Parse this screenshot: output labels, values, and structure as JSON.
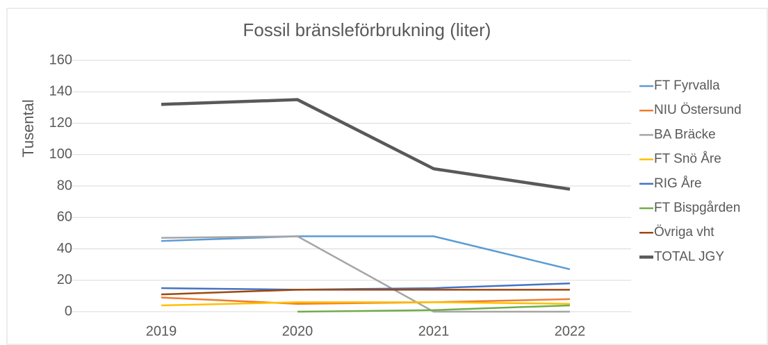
{
  "chart_data": {
    "type": "line",
    "title": "Fossil bränsleförbrukning (liter)",
    "y_label": "Tusental",
    "categories": [
      "2019",
      "2020",
      "2021",
      "2022"
    ],
    "series": [
      {
        "name": "FT Fyrvalla",
        "color": "#5b9bd5",
        "values": [
          45,
          48,
          48,
          27
        ]
      },
      {
        "name": "NIU Östersund",
        "color": "#ed7d31",
        "values": [
          9,
          5,
          6,
          8
        ]
      },
      {
        "name": "BA Bräcke",
        "color": "#a5a5a5",
        "values": [
          47,
          48,
          0,
          0
        ]
      },
      {
        "name": "FT Snö Åre",
        "color": "#ffc000",
        "values": [
          4,
          6,
          6,
          5
        ]
      },
      {
        "name": "RIG Åre",
        "color": "#4472c4",
        "values": [
          15,
          14,
          15,
          18
        ]
      },
      {
        "name": "FT Bispgården",
        "color": "#70ad47",
        "values": [
          null,
          0,
          1,
          4
        ]
      },
      {
        "name": "Övriga vht",
        "color": "#9e480e",
        "values": [
          11,
          14,
          14,
          14
        ]
      },
      {
        "name": "TOTAL JGY",
        "color": "#595959",
        "values": [
          132,
          135,
          91,
          78
        ]
      }
    ],
    "ylim": [
      0,
      160
    ],
    "yticks": [
      0,
      20,
      40,
      60,
      80,
      100,
      120,
      140,
      160
    ],
    "grid": true,
    "legend": "right"
  }
}
